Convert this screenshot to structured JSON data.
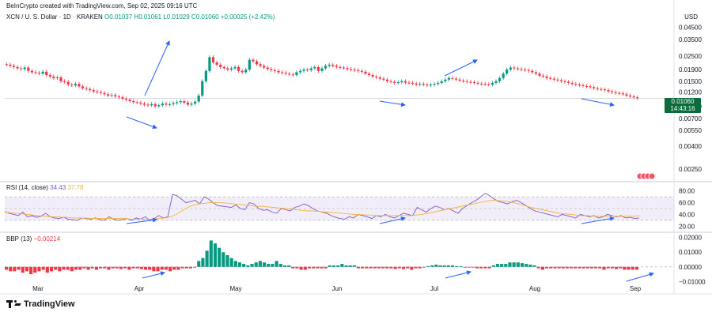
{
  "header": {
    "created": "BeInCrypto created with TradingView.com, Sep 02, 2025 09:16 UTC",
    "symbol": "XCN / U. S. Dollar · 1D · KRAKEN",
    "ohlc": "O0.01037 H0.01061 L0.01029 C0.01060",
    "change": "+0.00025 (+2.42%)",
    "currency": "USD"
  },
  "price_box": {
    "price": "0.01060",
    "countdown": "14:43:16"
  },
  "rsi_label": {
    "name": "RSI (14, close)",
    "value": "34.43",
    "ma": "37.78"
  },
  "bbp_label": {
    "name": "BBP (13)",
    "value": "−0.00214"
  },
  "branding": "TradingView",
  "colors": {
    "up": "#089981",
    "down": "#f23645",
    "rsi": "#7e57c2",
    "rsi_ma": "#f2b33d",
    "arrow": "#2962ff"
  },
  "chart_data": [
    {
      "type": "candlestick",
      "y_scale": "log",
      "ylim": [
        0.002,
        0.05
      ],
      "y_ticks": [
        "0.04500",
        "0.03500",
        "0.02500",
        "0.01900",
        "0.01500",
        "0.01200",
        "0.00900",
        "0.00700",
        "0.00550",
        "0.00400",
        "0.00250"
      ],
      "x_ticks": [
        "Mar",
        "Apr",
        "May",
        "Jun",
        "Jul",
        "Aug",
        "Sep"
      ],
      "close": [
        0.021,
        0.0205,
        0.02,
        0.0195,
        0.0192,
        0.0198,
        0.0185,
        0.018,
        0.0178,
        0.0175,
        0.0182,
        0.017,
        0.0165,
        0.016,
        0.0162,
        0.015,
        0.0148,
        0.014,
        0.0138,
        0.0142,
        0.0135,
        0.013,
        0.0128,
        0.0125,
        0.0122,
        0.012,
        0.0118,
        0.0115,
        0.0112,
        0.0113,
        0.011,
        0.0108,
        0.0105,
        0.0103,
        0.01,
        0.0098,
        0.0097,
        0.0095,
        0.0093,
        0.0092,
        0.0094,
        0.009,
        0.0092,
        0.0095,
        0.0093,
        0.0094,
        0.0096,
        0.0098,
        0.01,
        0.0097,
        0.0093,
        0.0095,
        0.0099,
        0.0112,
        0.015,
        0.0185,
        0.0245,
        0.022,
        0.021,
        0.02,
        0.0195,
        0.019,
        0.0195,
        0.02,
        0.0185,
        0.018,
        0.019,
        0.0232,
        0.0225,
        0.0212,
        0.0205,
        0.0198,
        0.0192,
        0.0188,
        0.0185,
        0.018,
        0.0178,
        0.0175,
        0.0172,
        0.017,
        0.018,
        0.0185,
        0.019,
        0.0188,
        0.0195,
        0.02,
        0.0185,
        0.0195,
        0.0205,
        0.021,
        0.0205,
        0.02,
        0.0198,
        0.0196,
        0.0192,
        0.019,
        0.0188,
        0.0185,
        0.0182,
        0.0175,
        0.017,
        0.0165,
        0.0162,
        0.0158,
        0.0155,
        0.015,
        0.0148,
        0.0145,
        0.0147,
        0.015,
        0.0146,
        0.0145,
        0.0143,
        0.014,
        0.0142,
        0.014,
        0.0138,
        0.014,
        0.0142,
        0.0145,
        0.015,
        0.0155,
        0.016,
        0.0158,
        0.0155,
        0.0152,
        0.015,
        0.0148,
        0.0147,
        0.0145,
        0.0143,
        0.0142,
        0.0141,
        0.014,
        0.0145,
        0.015,
        0.016,
        0.0175,
        0.019,
        0.0198,
        0.0195,
        0.0192,
        0.019,
        0.0188,
        0.0185,
        0.018,
        0.0175,
        0.0168,
        0.0165,
        0.016,
        0.0158,
        0.0155,
        0.0153,
        0.015,
        0.0148,
        0.0145,
        0.0142,
        0.014,
        0.0138,
        0.0136,
        0.0135,
        0.0133,
        0.013,
        0.0128,
        0.0127,
        0.0125,
        0.0122,
        0.012,
        0.0118,
        0.0117,
        0.0115,
        0.0112,
        0.011,
        0.0108,
        0.0106
      ]
    },
    {
      "type": "line",
      "title": "RSI (14, close)",
      "ylim": [
        15,
        85
      ],
      "y_ticks": [
        "80.00",
        "60.00",
        "40.00",
        "20.00"
      ],
      "band": [
        30,
        70
      ],
      "series": [
        {
          "name": "RSI",
          "values": [
            45,
            42,
            40,
            38,
            44,
            36,
            38,
            35,
            37,
            42,
            36,
            34,
            33,
            35,
            32,
            31,
            30,
            34,
            33,
            32,
            34,
            31,
            30,
            36,
            32,
            30,
            31,
            33,
            30,
            34,
            32,
            36,
            30,
            33,
            38,
            34,
            36,
            74,
            72,
            66,
            60,
            62,
            64,
            58,
            70,
            66,
            60,
            55,
            54,
            53,
            52,
            56,
            50,
            48,
            60,
            58,
            50,
            47,
            48,
            44,
            42,
            50,
            48,
            46,
            52,
            54,
            58,
            55,
            50,
            46,
            44,
            42,
            38,
            35,
            33,
            32,
            36,
            34,
            40,
            38,
            36,
            33,
            38,
            36,
            40,
            36,
            34,
            38,
            42,
            40,
            38,
            52,
            48,
            44,
            50,
            54,
            52,
            48,
            50,
            46,
            42,
            50,
            55,
            60,
            64,
            70,
            76,
            72,
            66,
            62,
            60,
            58,
            62,
            64,
            60,
            55,
            50,
            46,
            44,
            42,
            40,
            38,
            36,
            40,
            38,
            36,
            34,
            40,
            38,
            36,
            38,
            34,
            36,
            40,
            38,
            36,
            38,
            34,
            35,
            33,
            34
          ]
        },
        {
          "name": "RSI-MA",
          "values": [
            44,
            43,
            42,
            41,
            40,
            39,
            38,
            37,
            36,
            36,
            35,
            35,
            34,
            34,
            34,
            33,
            33,
            33,
            33,
            33,
            33,
            33,
            32,
            32,
            32,
            32,
            32,
            33,
            34,
            36,
            40,
            46,
            52,
            56,
            58,
            59,
            60,
            60,
            60,
            59,
            58,
            57,
            56,
            55,
            54,
            54,
            53,
            52,
            51,
            50,
            49,
            48,
            47,
            46,
            46,
            45,
            44,
            43,
            43,
            42,
            41,
            40,
            40,
            39,
            39,
            38,
            38,
            38,
            38,
            38,
            38,
            38,
            39,
            40,
            42,
            44,
            46,
            48,
            50,
            52,
            54,
            56,
            58,
            60,
            62,
            64,
            64,
            63,
            62,
            60,
            58,
            55,
            52,
            50,
            48,
            46,
            44,
            42,
            41,
            40,
            39,
            38,
            38,
            37,
            37,
            37,
            37,
            37,
            37,
            37,
            37,
            38
          ]
        }
      ]
    },
    {
      "type": "bar",
      "title": "BBP (13)",
      "ylim": [
        -0.012,
        0.022
      ],
      "y_ticks": [
        "0.02000",
        "0.01000",
        "0.00000",
        "−0.01000"
      ],
      "values": [
        -0.002,
        -0.003,
        -0.003,
        -0.002,
        -0.004,
        -0.003,
        -0.005,
        -0.004,
        -0.003,
        -0.002,
        -0.004,
        -0.003,
        -0.002,
        -0.003,
        -0.002,
        -0.002,
        -0.003,
        -0.002,
        -0.002,
        -0.001,
        -0.002,
        -0.001,
        -0.002,
        -0.001,
        -0.001,
        -0.002,
        -0.001,
        -0.001,
        -0.0015,
        -0.001,
        -0.002,
        -0.001,
        -0.001,
        -0.0015,
        -0.002,
        -0.002,
        -0.003,
        -0.003,
        -0.002,
        -0.002,
        -0.003,
        -0.002,
        -0.002,
        -0.001,
        -0.001,
        -0.001,
        -0.0005,
        0.004,
        0.006,
        0.011,
        0.018,
        0.016,
        0.013,
        0.01,
        0.008,
        0.006,
        0.004,
        0.003,
        0.002,
        0.001,
        0.002,
        0.003,
        0.004,
        0.003,
        0.002,
        0.002,
        0.004,
        0.002,
        0.001,
        0.001,
        -0.001,
        -0.001,
        -0.002,
        -0.002,
        -0.001,
        -0.001,
        -0.001,
        -0.001,
        -0.001,
        0.001,
        0.001,
        0.001,
        0.002,
        0.001,
        0.001,
        0.001,
        -0.001,
        -0.001,
        -0.001,
        -0.001,
        -0.001,
        -0.001,
        -0.001,
        -0.001,
        -0.001,
        -0.0015,
        -0.001,
        -0.0015,
        -0.001,
        -0.002,
        -0.001,
        -0.001,
        -0.0005,
        0.0005,
        0.001,
        0.0015,
        0.001,
        0.001,
        0.001,
        0.001,
        0.0005,
        0.0005,
        -0.0005,
        -0.0005,
        -0.0005,
        -0.001,
        -0.001,
        -0.001,
        -0.001,
        0.001,
        0.002,
        0.002,
        0.002,
        0.003,
        0.003,
        0.003,
        0.0025,
        0.002,
        0.0015,
        0.001,
        -0.001,
        -0.002,
        -0.001,
        -0.001,
        -0.001,
        -0.001,
        -0.001,
        -0.001,
        -0.001,
        -0.001,
        -0.001,
        -0.001,
        -0.001,
        -0.001,
        -0.001,
        -0.001,
        -0.002,
        -0.001,
        -0.001,
        -0.0015,
        -0.001,
        -0.002,
        -0.002,
        -0.002,
        -0.002
      ]
    }
  ]
}
